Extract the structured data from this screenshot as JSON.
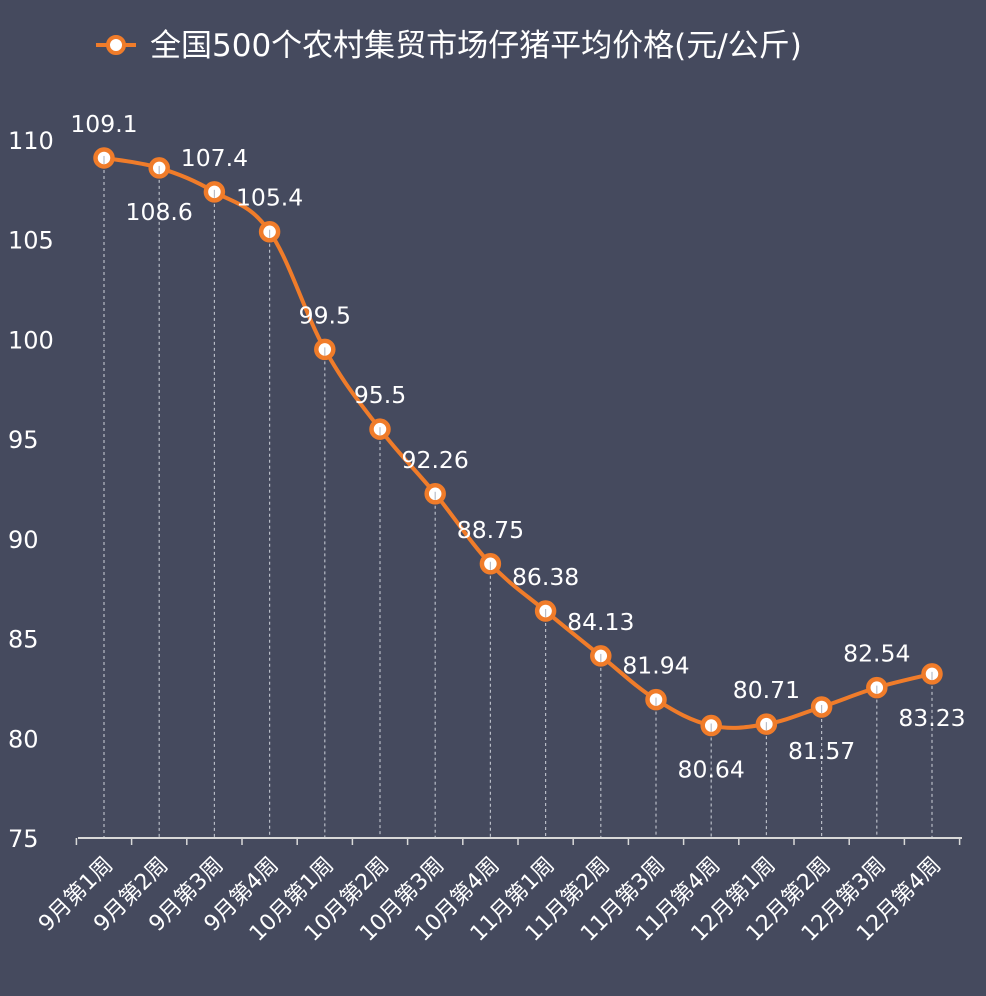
{
  "chart_data": {
    "type": "line",
    "title": "全国500个农村集贸市场仔猪平均价格(元/公斤)",
    "xlabel": "",
    "ylabel": "",
    "ylim": [
      75,
      110
    ],
    "yticks": [
      "75",
      "80",
      "85",
      "90",
      "95",
      "100",
      "105",
      "110"
    ],
    "categories": [
      "9月第1周",
      "9月第2周",
      "9月第3周",
      "9月第4周",
      "10月第1周",
      "10月第2周",
      "10月第3周",
      "10月第4周",
      "11月第1周",
      "11月第2周",
      "11月第3周",
      "11月第4周",
      "12月第1周",
      "12月第2周",
      "12月第3周",
      "12月第4周"
    ],
    "series": [
      {
        "name": "全国500个农村集贸市场仔猪平均价格(元/公斤)",
        "values": [
          109.1,
          108.6,
          107.4,
          105.4,
          99.5,
          95.5,
          92.26,
          88.75,
          86.38,
          84.13,
          81.94,
          80.64,
          80.71,
          81.57,
          82.54,
          83.23
        ],
        "labels": [
          "109.1",
          "108.6",
          "107.4",
          "105.4",
          "99.5",
          "95.5",
          "92.26",
          "88.75",
          "86.38",
          "84.13",
          "81.94",
          "80.64",
          "80.71",
          "81.57",
          "82.54",
          "83.23"
        ],
        "label_positions": [
          "above",
          "below",
          "above",
          "above",
          "above",
          "above",
          "above",
          "above",
          "above",
          "above",
          "above",
          "below",
          "above",
          "below",
          "above",
          "below"
        ]
      }
    ],
    "grid": false,
    "drop_lines": true,
    "legend_position": "top-center",
    "colors": {
      "background": "#454a5e",
      "line": "#f07c2a",
      "marker_fill": "#ffffff",
      "text": "#ffffff",
      "axis": "#d9d9d9",
      "drop_line": "#b8bcc6"
    }
  }
}
